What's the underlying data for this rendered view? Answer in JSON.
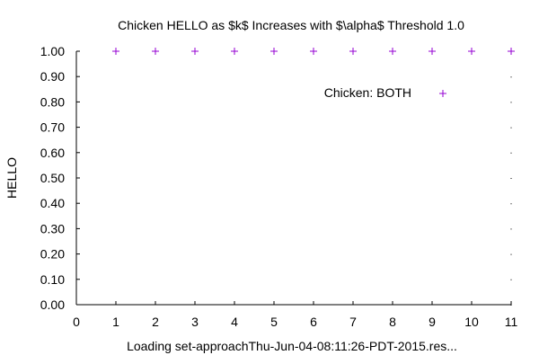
{
  "chart_data": {
    "type": "scatter",
    "title": "Chicken HELLO as $k$ Increases with $\\alpha$ Threshold 1.0",
    "xlabel": "Loading set-approachThu-Jun-04-08:11:26-PDT-2015.res...",
    "ylabel": "HELLO",
    "xlim": [
      0,
      11
    ],
    "ylim": [
      0,
      1
    ],
    "x_ticks": [
      0,
      1,
      2,
      3,
      4,
      5,
      6,
      7,
      8,
      9,
      10,
      11
    ],
    "x_tick_labels": [
      "0",
      "1",
      "2",
      "3",
      "4",
      "5",
      "6",
      "7",
      "8",
      "9",
      "10",
      "11"
    ],
    "y_ticks": [
      0,
      0.1,
      0.2,
      0.3,
      0.4,
      0.5,
      0.6,
      0.7,
      0.8,
      0.9,
      1.0
    ],
    "y_tick_labels": [
      "0.00",
      "0.10",
      "0.20",
      "0.30",
      "0.40",
      "0.50",
      "0.60",
      "0.70",
      "0.80",
      "0.90",
      "1.00"
    ],
    "grid": false,
    "legend": {
      "placement": "top-right",
      "entries": [
        {
          "name": "Chicken: BOTH",
          "marker": "+",
          "color": "#9400d3"
        }
      ]
    },
    "series": [
      {
        "name": "Chicken: BOTH",
        "marker": "+",
        "color": "#9400d3",
        "x": [
          1,
          2,
          3,
          4,
          5,
          6,
          7,
          8,
          9,
          10,
          11
        ],
        "y": [
          1.0,
          1.0,
          1.0,
          1.0,
          1.0,
          1.0,
          1.0,
          1.0,
          1.0,
          1.0,
          1.0
        ]
      }
    ]
  }
}
